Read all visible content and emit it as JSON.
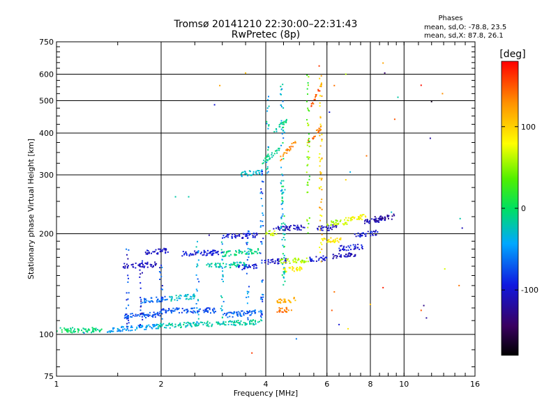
{
  "chart_data": {
    "type": "scatter",
    "title": "Tromsø 20141210 22:30:00–22:31:43",
    "subtitle": "RwPretec (8p)",
    "xlabel": "Frequency [MHz]",
    "ylabel": "Stationary phase Virtual Height [km]",
    "xscale": "log",
    "yscale": "log",
    "xlim": [
      1,
      16
    ],
    "ylim": [
      75,
      750
    ],
    "x_ticks": [
      1,
      2,
      4,
      6,
      8,
      10,
      16
    ],
    "x_tick_labels": [
      "1",
      "2",
      "4",
      "6",
      "8",
      "10",
      "16"
    ],
    "y_ticks": [
      75,
      100,
      200,
      300,
      400,
      500,
      600,
      750
    ],
    "y_tick_labels": [
      "75",
      "100",
      "200",
      "300",
      "400",
      "500",
      "600",
      "750"
    ],
    "grid": true,
    "phases_box": {
      "heading": "Phases",
      "line_o": "mean, sd,O:  -78.8, 23.5",
      "line_x": "mean, sd,X:  87.8, 26.1"
    },
    "colorbar": {
      "label": "[deg]",
      "range": [
        -180,
        180
      ],
      "ticks": [
        100,
        0,
        -100
      ],
      "tick_labels": [
        "100",
        "0",
        "-100"
      ]
    },
    "traces": [
      {
        "x": [
          1.0,
          1.35
        ],
        "y": [
          103,
          103
        ],
        "phase": -5
      },
      {
        "x": [
          1.4,
          1.95
        ],
        "y": [
          103,
          106
        ],
        "phase": -50
      },
      {
        "x": [
          1.95,
          3.9
        ],
        "y": [
          106,
          109
        ],
        "phase": -20
      },
      {
        "x": [
          1.55,
          2.0
        ],
        "y": [
          113,
          115
        ],
        "phase": -75
      },
      {
        "x": [
          2.0,
          2.9
        ],
        "y": [
          118,
          118
        ],
        "phase": -75
      },
      {
        "x": [
          3.0,
          3.9
        ],
        "y": [
          114,
          117
        ],
        "phase": -70
      },
      {
        "x": [
          1.75,
          2.1
        ],
        "y": [
          126,
          128
        ],
        "phase": -65
      },
      {
        "x": [
          2.1,
          2.5
        ],
        "y": [
          128,
          130
        ],
        "phase": -30
      },
      {
        "x": [
          1.55,
          1.95
        ],
        "y": [
          160,
          162
        ],
        "phase": -110
      },
      {
        "x": [
          1.8,
          2.1
        ],
        "y": [
          176,
          178
        ],
        "phase": -105
      },
      {
        "x": [
          2.3,
          3.0
        ],
        "y": [
          174,
          176
        ],
        "phase": -100
      },
      {
        "x": [
          3.0,
          3.85
        ],
        "y": [
          174,
          178
        ],
        "phase": -10
      },
      {
        "x": [
          2.7,
          3.5
        ],
        "y": [
          160,
          162
        ],
        "phase": -20
      },
      {
        "x": [
          3.3,
          3.8
        ],
        "y": [
          158,
          160
        ],
        "phase": -95
      },
      {
        "x": [
          3.0,
          3.8
        ],
        "y": [
          196,
          198
        ],
        "phase": -100
      },
      {
        "x": [
          3.9,
          4.6
        ],
        "y": [
          164,
          166
        ],
        "phase": -105
      },
      {
        "x": [
          4.0,
          4.3
        ],
        "y": [
          200,
          202
        ],
        "phase": 70
      },
      {
        "x": [
          4.2,
          5.2
        ],
        "y": [
          207,
          209
        ],
        "phase": -110
      },
      {
        "x": [
          4.4,
          5.3
        ],
        "y": [
          165,
          167
        ],
        "phase": 60
      },
      {
        "x": [
          4.3,
          4.8
        ],
        "y": [
          118,
          119
        ],
        "phase": 140
      },
      {
        "x": [
          4.3,
          4.9
        ],
        "y": [
          125,
          127
        ],
        "phase": 115
      },
      {
        "x": [
          4.5,
          5.1
        ],
        "y": [
          156,
          158
        ],
        "phase": 85
      },
      {
        "x": [
          5.3,
          6.0
        ],
        "y": [
          167,
          169
        ],
        "phase": -100
      },
      {
        "x": [
          5.7,
          6.6
        ],
        "y": [
          190,
          192
        ],
        "phase": 90
      },
      {
        "x": [
          5.6,
          6.4
        ],
        "y": [
          207,
          209
        ],
        "phase": -110
      },
      {
        "x": [
          6.0,
          6.9
        ],
        "y": [
          215,
          217
        ],
        "phase": 60
      },
      {
        "x": [
          6.2,
          7.3
        ],
        "y": [
          171,
          174
        ],
        "phase": -110
      },
      {
        "x": [
          6.5,
          7.6
        ],
        "y": [
          181,
          183
        ],
        "phase": -100
      },
      {
        "x": [
          6.8,
          7.8
        ],
        "y": [
          222,
          225
        ],
        "phase": 80
      },
      {
        "x": [
          7.2,
          8.4
        ],
        "y": [
          198,
          202
        ],
        "phase": -100
      },
      {
        "x": [
          7.7,
          8.8
        ],
        "y": [
          217,
          221
        ],
        "phase": -110
      },
      {
        "x": [
          8.2,
          9.4
        ],
        "y": [
          221,
          225
        ],
        "phase": -120
      },
      {
        "x": [
          3.4,
          3.9
        ],
        "y": [
          302,
          306
        ],
        "phase": -30
      },
      {
        "x": [
          3.9,
          4.4
        ],
        "y": [
          325,
          360
        ],
        "phase": -10
      },
      {
        "x": [
          4.4,
          4.9
        ],
        "y": [
          335,
          380
        ],
        "phase": 130
      },
      {
        "x": [
          4.2,
          4.6
        ],
        "y": [
          400,
          440
        ],
        "phase": -15
      },
      {
        "x": [
          5.3,
          5.8
        ],
        "y": [
          375,
          420
        ],
        "phase": 140
      },
      {
        "x": [
          5.4,
          5.8
        ],
        "y": [
          480,
          560
        ],
        "phase": 150
      }
    ],
    "columns": [
      {
        "x": 1.6,
        "y": [
          104,
          180
        ],
        "phase": -90
      },
      {
        "x": 1.75,
        "y": [
          105,
          168
        ],
        "phase": -100
      },
      {
        "x": 2.0,
        "y": [
          107,
          165
        ],
        "phase": -80
      },
      {
        "x": 2.55,
        "y": [
          108,
          195
        ],
        "phase": -50
      },
      {
        "x": 3.0,
        "y": [
          110,
          200
        ],
        "phase": -40
      },
      {
        "x": 3.55,
        "y": [
          110,
          205
        ],
        "phase": -60
      },
      {
        "x": 3.9,
        "y": [
          110,
          320
        ],
        "phase": -70
      },
      {
        "x": 4.05,
        "y": [
          300,
          520
        ],
        "phase": -30
      },
      {
        "x": 4.45,
        "y": [
          200,
          560
        ],
        "phase": -40
      },
      {
        "x": 4.5,
        "y": [
          140,
          440
        ],
        "phase": -10
      },
      {
        "x": 5.3,
        "y": [
          200,
          600
        ],
        "phase": 40
      },
      {
        "x": 5.75,
        "y": [
          160,
          620
        ],
        "phase": 100
      }
    ],
    "scatter": [
      {
        "x": 2.85,
        "y": 486,
        "phase": -100
      },
      {
        "x": 2.4,
        "y": 258,
        "phase": -20
      },
      {
        "x": 3.5,
        "y": 605,
        "phase": 110
      },
      {
        "x": 2.95,
        "y": 555,
        "phase": 120
      },
      {
        "x": 3.65,
        "y": 88,
        "phase": 160
      },
      {
        "x": 4.9,
        "y": 97,
        "phase": -60
      },
      {
        "x": 5.7,
        "y": 635,
        "phase": 160
      },
      {
        "x": 6.3,
        "y": 555,
        "phase": 140
      },
      {
        "x": 6.8,
        "y": 600,
        "phase": 60
      },
      {
        "x": 8.7,
        "y": 648,
        "phase": 120
      },
      {
        "x": 8.8,
        "y": 605,
        "phase": -140
      },
      {
        "x": 9.4,
        "y": 440,
        "phase": 150
      },
      {
        "x": 9.6,
        "y": 512,
        "phase": -20
      },
      {
        "x": 11.2,
        "y": 556,
        "phase": 175
      },
      {
        "x": 12.0,
        "y": 497,
        "phase": -170
      },
      {
        "x": 11.9,
        "y": 386,
        "phase": -120
      },
      {
        "x": 12.9,
        "y": 525,
        "phase": 130
      },
      {
        "x": 14.5,
        "y": 222,
        "phase": -20
      },
      {
        "x": 14.7,
        "y": 208,
        "phase": -110
      },
      {
        "x": 13.1,
        "y": 157,
        "phase": 70
      },
      {
        "x": 14.4,
        "y": 140,
        "phase": 140
      },
      {
        "x": 11.2,
        "y": 118,
        "phase": 150
      },
      {
        "x": 11.4,
        "y": 122,
        "phase": -130
      },
      {
        "x": 11.6,
        "y": 112,
        "phase": -120
      },
      {
        "x": 8.7,
        "y": 138,
        "phase": 170
      },
      {
        "x": 8.0,
        "y": 123,
        "phase": 110
      },
      {
        "x": 6.2,
        "y": 118,
        "phase": 150
      },
      {
        "x": 6.3,
        "y": 134,
        "phase": 140
      },
      {
        "x": 6.5,
        "y": 107,
        "phase": -100
      },
      {
        "x": 6.9,
        "y": 104,
        "phase": 90
      },
      {
        "x": 7.0,
        "y": 306,
        "phase": -40
      },
      {
        "x": 7.8,
        "y": 342,
        "phase": 140
      },
      {
        "x": 9.2,
        "y": 232,
        "phase": -30
      },
      {
        "x": 6.1,
        "y": 462,
        "phase": -100
      },
      {
        "x": 6.8,
        "y": 290,
        "phase": 100
      },
      {
        "x": 2.75,
        "y": 198,
        "phase": -120
      },
      {
        "x": 2.2,
        "y": 258,
        "phase": -20
      },
      {
        "x": 1.5,
        "y": 104,
        "phase": -30
      },
      {
        "x": 1.2,
        "y": 101,
        "phase": -60
      }
    ]
  }
}
